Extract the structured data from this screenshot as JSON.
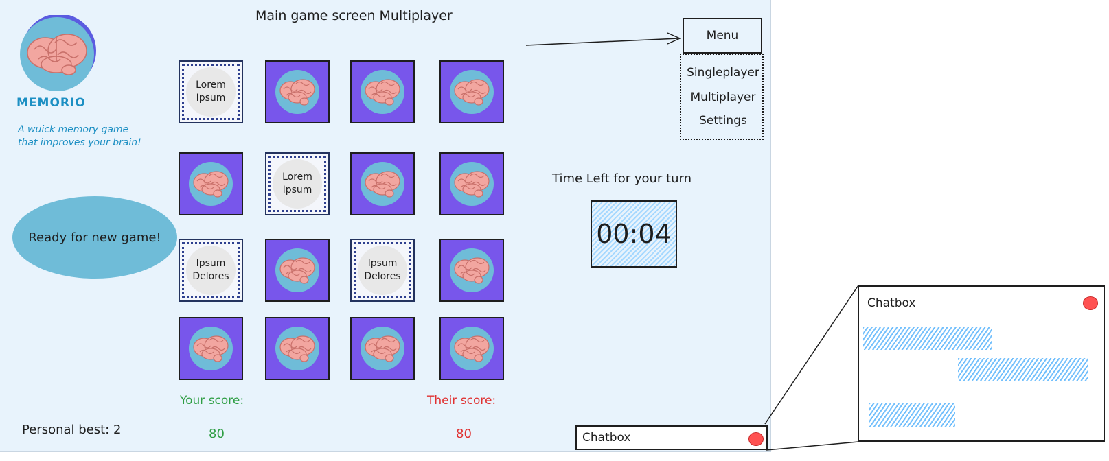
{
  "screen_title": "Main game screen Multiplayer",
  "app": {
    "name": "MEMORIO",
    "tagline_lines": [
      "A wuick memory game",
      "that improves your brain!"
    ],
    "logo_icon": "brain-icon"
  },
  "status_message": "Ready for new game!",
  "personal_best": "Personal best: 2",
  "board": {
    "card_back_color": "#7856eb",
    "card_icon": "brain-icon",
    "rows": [
      [
        {
          "state": "face",
          "lines": [
            "Lorem",
            "Ipsum"
          ]
        },
        {
          "state": "back"
        },
        {
          "state": "back"
        },
        {
          "state": "back"
        }
      ],
      [
        {
          "state": "back"
        },
        {
          "state": "face",
          "lines": [
            "Lorem",
            "Ipsum"
          ]
        },
        {
          "state": "back"
        },
        {
          "state": "back"
        }
      ],
      [
        {
          "state": "face",
          "lines": [
            "Ipsum",
            "Delores"
          ]
        },
        {
          "state": "back"
        },
        {
          "state": "face",
          "lines": [
            "Ipsum",
            "Delores"
          ]
        },
        {
          "state": "back"
        }
      ],
      [
        {
          "state": "back"
        },
        {
          "state": "back"
        },
        {
          "state": "back"
        },
        {
          "state": "back"
        }
      ]
    ]
  },
  "scores": {
    "yours_label": "Your score:",
    "yours_value": "80",
    "theirs_label": "Their score:",
    "theirs_value": "80",
    "yours_color": "#2f9e44",
    "theirs_color": "#e03131"
  },
  "menu": {
    "button_label": "Menu",
    "items": [
      "Singleplayer",
      "Multiplayer",
      "Settings"
    ]
  },
  "timer": {
    "label": "Time Left for your turn",
    "value": "00:04"
  },
  "chatbox": {
    "bar_label": "Chatbox",
    "panel_title": "Chatbox",
    "close_color": "#ff5252"
  }
}
